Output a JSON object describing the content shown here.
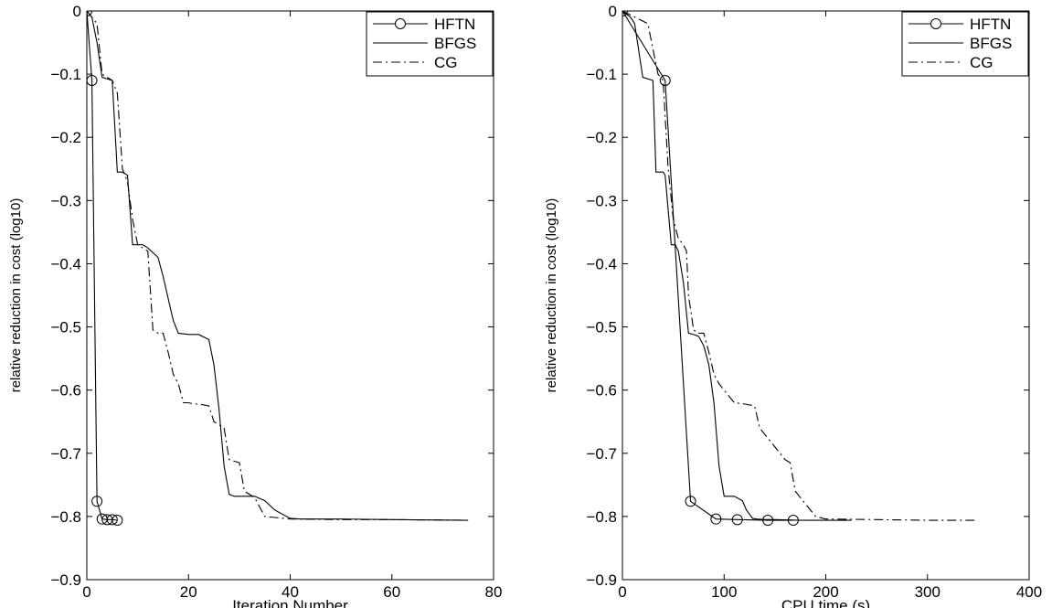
{
  "chart_data": [
    {
      "type": "line",
      "title": "",
      "xlabel": "Iteration Number",
      "ylabel": "relative reduction in cost (log10)",
      "xlim": [
        0,
        80
      ],
      "ylim": [
        -0.9,
        0
      ],
      "xticks": [
        0,
        20,
        40,
        60,
        80
      ],
      "yticks": [
        0,
        -0.1,
        -0.2,
        -0.3,
        -0.4,
        -0.5,
        -0.6,
        -0.7,
        -0.8,
        -0.9
      ],
      "xtick_labels": [
        "0",
        "20",
        "40",
        "60",
        "80"
      ],
      "ytick_labels": [
        "0",
        "−0.1",
        "−0.2",
        "−0.3",
        "−0.4",
        "−0.5",
        "−0.6",
        "−0.7",
        "−0.8",
        "−0.9"
      ],
      "grid": false,
      "legend_position": "top-right",
      "series": [
        {
          "name": "HFTN",
          "style": "solid-circle-markers",
          "x": [
            0,
            1,
            2,
            3,
            4,
            5,
            6
          ],
          "y": [
            0,
            -0.11,
            -0.776,
            -0.804,
            -0.805,
            -0.805,
            -0.806
          ]
        },
        {
          "name": "BFGS",
          "style": "solid",
          "x": [
            0,
            1,
            2,
            3,
            5,
            6,
            7,
            8,
            9,
            11,
            12,
            14,
            15,
            17,
            18,
            20,
            22,
            24,
            25,
            26,
            27,
            28,
            29,
            33,
            35,
            37,
            40,
            42,
            50,
            60,
            75
          ],
          "y": [
            0,
            -0.01,
            -0.05,
            -0.105,
            -0.11,
            -0.255,
            -0.255,
            -0.26,
            -0.37,
            -0.37,
            -0.375,
            -0.39,
            -0.42,
            -0.49,
            -0.51,
            -0.512,
            -0.512,
            -0.52,
            -0.56,
            -0.63,
            -0.72,
            -0.765,
            -0.768,
            -0.768,
            -0.775,
            -0.79,
            -0.803,
            -0.804,
            -0.804,
            -0.805,
            -0.806
          ]
        },
        {
          "name": "CG",
          "style": "dash-dot",
          "x": [
            0,
            2,
            3,
            5,
            6,
            7,
            8,
            9,
            10,
            12,
            13,
            14,
            15,
            16,
            17,
            18,
            19,
            20,
            21,
            22,
            24,
            25,
            27,
            28,
            30,
            31,
            33,
            35,
            40,
            50,
            60,
            75
          ],
          "y": [
            0,
            -0.02,
            -0.1,
            -0.11,
            -0.13,
            -0.25,
            -0.27,
            -0.33,
            -0.37,
            -0.38,
            -0.505,
            -0.51,
            -0.51,
            -0.54,
            -0.575,
            -0.59,
            -0.62,
            -0.62,
            -0.622,
            -0.622,
            -0.625,
            -0.65,
            -0.66,
            -0.71,
            -0.715,
            -0.76,
            -0.77,
            -0.8,
            -0.804,
            -0.805,
            -0.805,
            -0.806
          ]
        }
      ]
    },
    {
      "type": "line",
      "title": "",
      "xlabel": "CPU time (s)",
      "ylabel": "relative reduction in cost (log10)",
      "xlim": [
        0,
        400
      ],
      "ylim": [
        -0.9,
        0
      ],
      "xticks": [
        0,
        100,
        200,
        300,
        400
      ],
      "yticks": [
        0,
        -0.1,
        -0.2,
        -0.3,
        -0.4,
        -0.5,
        -0.6,
        -0.7,
        -0.8,
        -0.9
      ],
      "xtick_labels": [
        "0",
        "100",
        "200",
        "300",
        "400"
      ],
      "ytick_labels": [
        "0",
        "−0.1",
        "−0.2",
        "−0.3",
        "−0.4",
        "−0.5",
        "−0.6",
        "−0.7",
        "−0.8",
        "−0.9"
      ],
      "grid": false,
      "legend_position": "top-right",
      "series": [
        {
          "name": "HFTN",
          "style": "solid-circle-markers",
          "x": [
            0,
            42,
            67,
            92,
            113,
            143,
            168
          ],
          "y": [
            0,
            -0.11,
            -0.776,
            -0.804,
            -0.805,
            -0.806,
            -0.806
          ]
        },
        {
          "name": "BFGS",
          "style": "solid",
          "x": [
            0,
            8,
            12,
            20,
            30,
            33,
            40,
            42,
            48,
            52,
            55,
            60,
            65,
            70,
            75,
            80,
            85,
            90,
            95,
            100,
            110,
            118,
            122,
            128,
            132,
            140,
            150,
            175,
            225
          ],
          "y": [
            0,
            -0.01,
            -0.02,
            -0.105,
            -0.11,
            -0.255,
            -0.255,
            -0.26,
            -0.37,
            -0.37,
            -0.38,
            -0.43,
            -0.51,
            -0.512,
            -0.515,
            -0.53,
            -0.56,
            -0.62,
            -0.72,
            -0.768,
            -0.768,
            -0.775,
            -0.79,
            -0.803,
            -0.804,
            -0.805,
            -0.805,
            -0.806,
            -0.806
          ]
        },
        {
          "name": "CG",
          "style": "dash-dot",
          "x": [
            0,
            25,
            35,
            40,
            45,
            50,
            55,
            60,
            63,
            65,
            70,
            75,
            80,
            85,
            90,
            95,
            100,
            105,
            110,
            120,
            130,
            135,
            140,
            150,
            160,
            165,
            170,
            175,
            180,
            185,
            190,
            200,
            250,
            300,
            350
          ],
          "y": [
            0,
            -0.02,
            -0.1,
            -0.11,
            -0.25,
            -0.33,
            -0.36,
            -0.37,
            -0.38,
            -0.45,
            -0.505,
            -0.51,
            -0.51,
            -0.54,
            -0.575,
            -0.59,
            -0.6,
            -0.61,
            -0.62,
            -0.622,
            -0.625,
            -0.66,
            -0.67,
            -0.69,
            -0.71,
            -0.715,
            -0.76,
            -0.77,
            -0.78,
            -0.79,
            -0.8,
            -0.804,
            -0.805,
            -0.806,
            -0.806
          ]
        }
      ]
    }
  ]
}
